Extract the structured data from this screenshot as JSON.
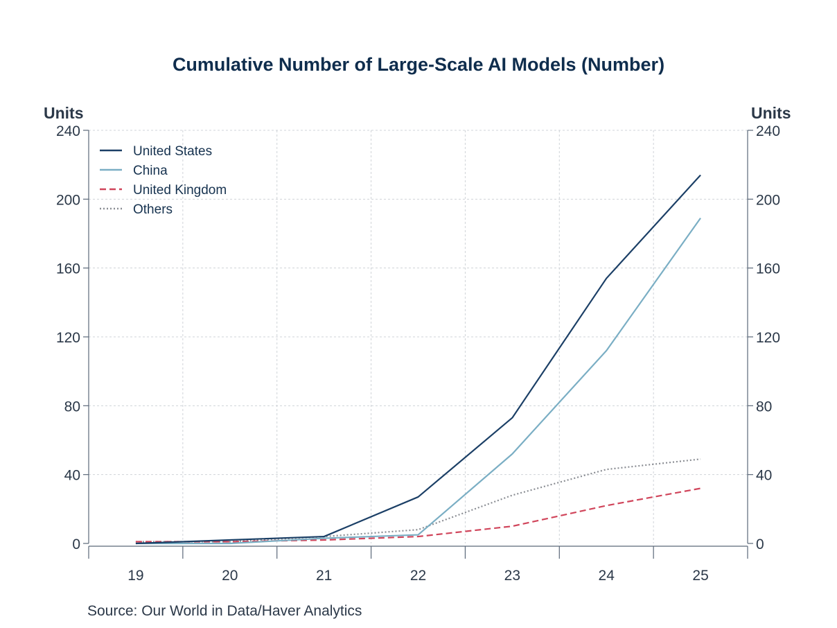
{
  "chart_data": {
    "type": "line",
    "title": "Cumulative Number of Large-Scale AI Models (Number)",
    "ylabel_left": "Units",
    "ylabel_right": "Units",
    "xlabel": "",
    "x": [
      "19",
      "20",
      "21",
      "22",
      "23",
      "24",
      "25"
    ],
    "ylim": [
      0,
      240
    ],
    "yticks": [
      0,
      40,
      80,
      120,
      160,
      200,
      240
    ],
    "grid": true,
    "legend_position": "top-left",
    "series": [
      {
        "name": "United States",
        "color": "#1b3f66",
        "style": "solid",
        "values": [
          0,
          2,
          4,
          27,
          73,
          154,
          214
        ]
      },
      {
        "name": "China",
        "color": "#7aaec4",
        "style": "solid",
        "values": [
          0,
          0,
          3,
          5,
          52,
          112,
          189
        ]
      },
      {
        "name": "United Kingdom",
        "color": "#d0445a",
        "style": "dashed",
        "values": [
          1,
          1,
          2,
          4,
          10,
          22,
          32
        ]
      },
      {
        "name": "Others",
        "color": "#8a8d93",
        "style": "dotted",
        "values": [
          1,
          1,
          4,
          8,
          28,
          43,
          49
        ]
      }
    ],
    "source": "Source:  Our World in Data/Haver Analytics"
  }
}
